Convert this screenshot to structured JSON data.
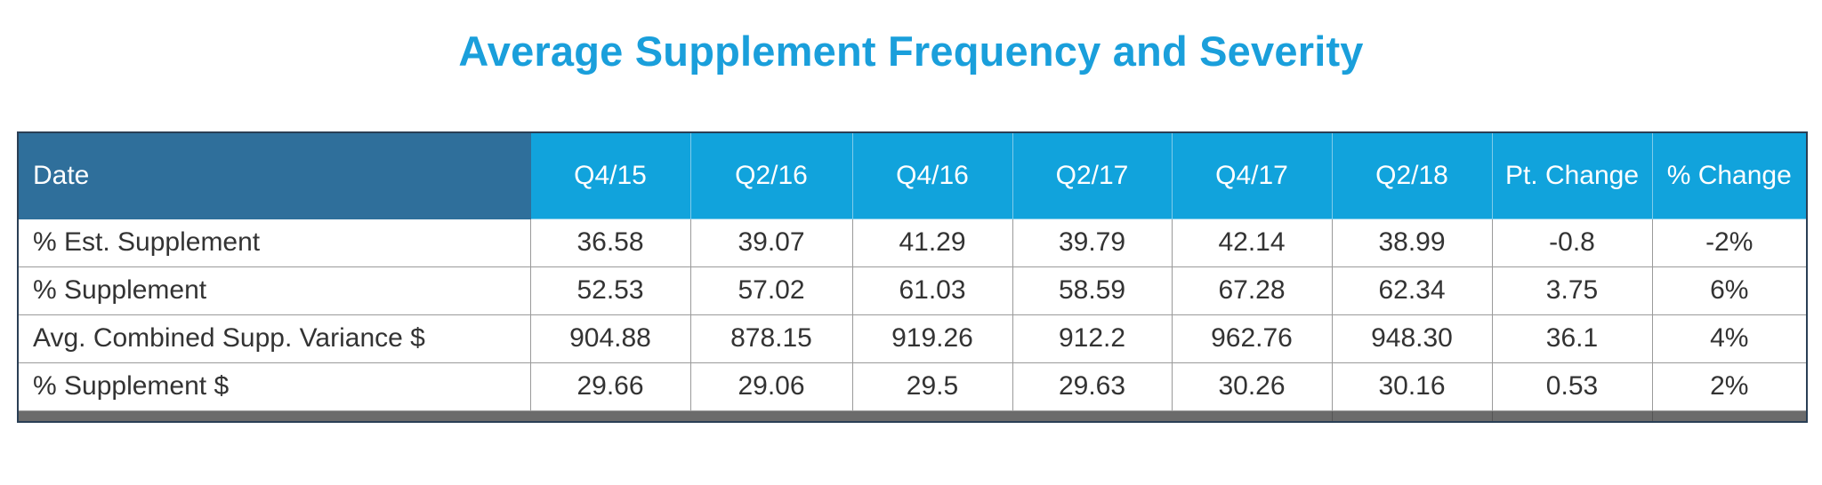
{
  "chart_data": {
    "type": "table",
    "title": "Average Supplement Frequency and Severity",
    "columns": [
      "Date",
      "Q4/15",
      "Q2/16",
      "Q4/16",
      "Q2/17",
      "Q4/17",
      "Q2/18",
      "Pt. Change",
      "% Change"
    ],
    "rows": [
      {
        "label": "% Est. Supplement",
        "values": [
          "36.58",
          "39.07",
          "41.29",
          "39.79",
          "42.14",
          "38.99",
          "-0.8",
          "-2%"
        ]
      },
      {
        "label": "% Supplement",
        "values": [
          "52.53",
          "57.02",
          "61.03",
          "58.59",
          "67.28",
          "62.34",
          "3.75",
          "6%"
        ]
      },
      {
        "label": "Avg. Combined Supp. Variance $",
        "values": [
          "904.88",
          "878.15",
          "919.26",
          "912.2",
          "962.76",
          "948.30",
          "36.1",
          "4%"
        ]
      },
      {
        "label": "% Supplement $",
        "values": [
          "29.66",
          "29.06",
          "29.5",
          "29.63",
          "30.26",
          "30.16",
          "0.53",
          "2%"
        ]
      }
    ]
  },
  "colors": {
    "title": "#1a9fdb",
    "header_bg": "#11a3dc",
    "header_first_bg": "#2f6f9b",
    "footer_bar": "#6b6b6b"
  }
}
